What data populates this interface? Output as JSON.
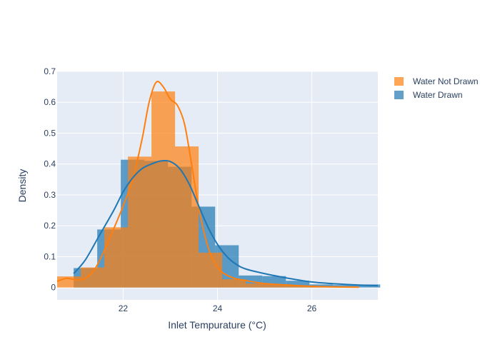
{
  "chart_data": {
    "type": "histogram",
    "xlabel": "Inlet Tempurature (°C)",
    "ylabel": "Density",
    "xlim": [
      20.6,
      27.4
    ],
    "ylim": [
      -0.04,
      0.7
    ],
    "xticks": [
      22,
      24,
      26
    ],
    "yticks": [
      0,
      0.1,
      0.2,
      0.3,
      0.4,
      0.5,
      0.6,
      0.7
    ],
    "grid": true,
    "plot_background": "#e5ecf6",
    "legend_position": "top-right",
    "series": [
      {
        "name": "Water Drawn",
        "color": "#1f77b4",
        "bins": [
          {
            "x0": 20.95,
            "x1": 21.45,
            "y": 0.063
          },
          {
            "x0": 21.45,
            "x1": 21.95,
            "y": 0.188
          },
          {
            "x0": 21.95,
            "x1": 22.45,
            "y": 0.414
          },
          {
            "x0": 22.45,
            "x1": 22.95,
            "y": 0.41
          },
          {
            "x0": 22.95,
            "x1": 23.45,
            "y": 0.391
          },
          {
            "x0": 23.45,
            "x1": 23.95,
            "y": 0.262
          },
          {
            "x0": 23.95,
            "x1": 24.45,
            "y": 0.137
          },
          {
            "x0": 24.45,
            "x1": 24.95,
            "y": 0.039
          },
          {
            "x0": 24.95,
            "x1": 25.45,
            "y": 0.037
          },
          {
            "x0": 25.45,
            "x1": 25.95,
            "y": 0.022
          },
          {
            "x0": 25.95,
            "x1": 26.45,
            "y": 0.01
          },
          {
            "x0": 26.45,
            "x1": 26.95,
            "y": 0.008
          },
          {
            "x0": 26.95,
            "x1": 27.45,
            "y": 0.01
          }
        ],
        "kde": {
          "x": [
            20.95,
            21.2,
            21.5,
            21.8,
            22.0,
            22.2,
            22.4,
            22.6,
            22.8,
            23.0,
            23.2,
            23.4,
            23.6,
            23.8,
            24.0,
            24.2,
            24.4,
            24.6,
            25.0,
            25.5,
            26.0,
            26.5,
            27.0,
            27.4
          ],
          "y": [
            0.045,
            0.09,
            0.17,
            0.25,
            0.31,
            0.355,
            0.385,
            0.4,
            0.41,
            0.408,
            0.385,
            0.335,
            0.265,
            0.195,
            0.14,
            0.1,
            0.075,
            0.06,
            0.045,
            0.03,
            0.018,
            0.012,
            0.008,
            0.006
          ]
        }
      },
      {
        "name": "Water Not Drawn",
        "color": "#ff7f0e",
        "bins": [
          {
            "x0": 20.6,
            "x1": 21.1,
            "y": 0.036
          },
          {
            "x0": 21.1,
            "x1": 21.6,
            "y": 0.065
          },
          {
            "x0": 21.6,
            "x1": 22.1,
            "y": 0.195
          },
          {
            "x0": 22.1,
            "x1": 22.6,
            "y": 0.424
          },
          {
            "x0": 22.6,
            "x1": 23.1,
            "y": 0.635
          },
          {
            "x0": 23.1,
            "x1": 23.6,
            "y": 0.457
          },
          {
            "x0": 23.6,
            "x1": 24.1,
            "y": 0.113
          },
          {
            "x0": 24.1,
            "x1": 24.6,
            "y": 0.027
          },
          {
            "x0": 24.6,
            "x1": 25.1,
            "y": 0.013
          },
          {
            "x0": 25.1,
            "x1": 25.6,
            "y": 0.01
          },
          {
            "x0": 25.6,
            "x1": 26.1,
            "y": 0.006
          },
          {
            "x0": 26.1,
            "x1": 26.6,
            "y": 0.004
          },
          {
            "x0": 26.6,
            "x1": 27.0,
            "y": 0.002
          }
        ],
        "kde": {
          "x": [
            20.6,
            20.8,
            21.0,
            21.2,
            21.4,
            21.6,
            21.8,
            22.0,
            22.2,
            22.4,
            22.55,
            22.7,
            22.85,
            23.0,
            23.15,
            23.3,
            23.45,
            23.6,
            23.8,
            24.0,
            24.2,
            24.4,
            24.7,
            25.0,
            25.5,
            26.0,
            26.5,
            27.0
          ],
          "y": [
            0.02,
            0.03,
            0.025,
            0.03,
            0.06,
            0.12,
            0.19,
            0.265,
            0.35,
            0.48,
            0.6,
            0.665,
            0.65,
            0.61,
            0.59,
            0.53,
            0.4,
            0.26,
            0.13,
            0.065,
            0.04,
            0.028,
            0.02,
            0.013,
            0.008,
            0.004,
            0.002,
            0.001
          ]
        }
      }
    ],
    "legend": [
      "Water Not Drawn",
      "Water Drawn"
    ]
  }
}
